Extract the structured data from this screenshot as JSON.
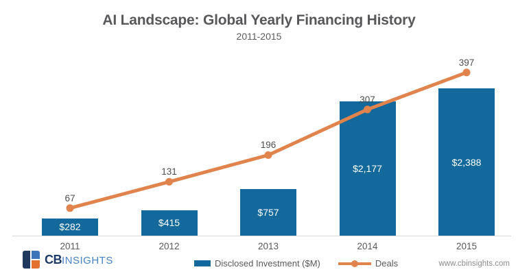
{
  "header": {
    "title": "AI Landscape: Global Yearly Financing History",
    "subtitle": "2011-2015"
  },
  "chart_data": {
    "type": "bar",
    "combo": "bar+line",
    "title": "AI Landscape: Global Yearly Financing History",
    "subtitle": "2011-2015",
    "categories": [
      "2011",
      "2012",
      "2013",
      "2014",
      "2015"
    ],
    "series": [
      {
        "name": "Disclosed Investment ($M)",
        "type": "bar",
        "values": [
          282,
          415,
          757,
          2177,
          2388
        ],
        "labels": [
          "$282",
          "$415",
          "$757",
          "$2,177",
          "$2,388"
        ],
        "color": "#13699b"
      },
      {
        "name": "Deals",
        "type": "line",
        "values": [
          67,
          131,
          196,
          307,
          397
        ],
        "labels": [
          "67",
          "131",
          "196",
          "307",
          "397"
        ],
        "color": "#e0834c"
      }
    ],
    "xlabel": "",
    "ylabel": "",
    "bar_axis_range": [
      0,
      2388
    ],
    "line_axis_range": [
      0,
      440
    ],
    "grid": false,
    "legend_position": "bottom"
  },
  "footer": {
    "logo": {
      "cb": "CB",
      "insights": "INSIGHTS",
      "colors": {
        "navy": "#21395f",
        "blue": "#3c74b9",
        "orange": "#e4702e",
        "text_cb": "#1d3a66",
        "text_insights": "#4583c4"
      }
    },
    "url": "www.cbinsights.com"
  }
}
